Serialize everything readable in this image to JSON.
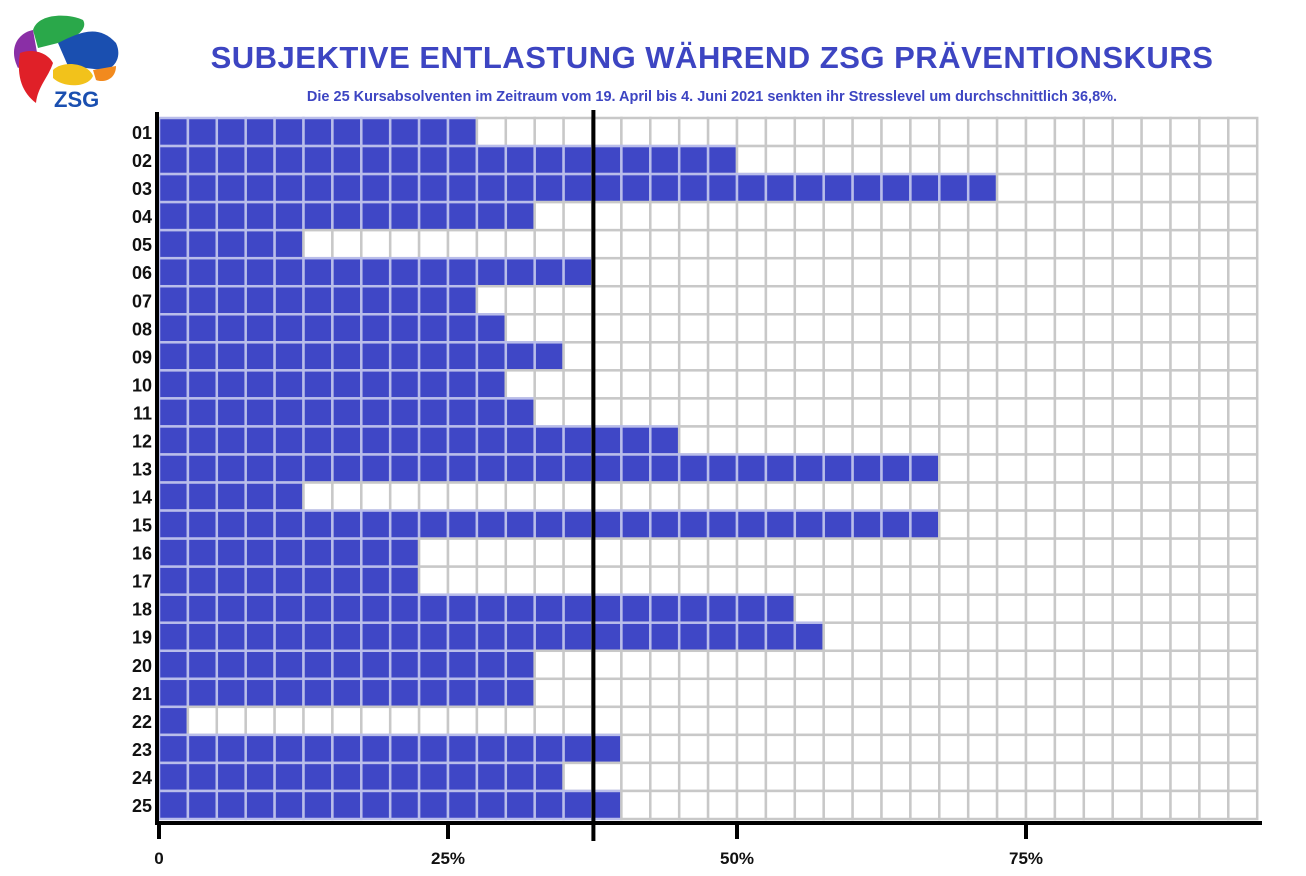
{
  "logo": {
    "text": "ZSG"
  },
  "chart_data": {
    "type": "bar",
    "orientation": "horizontal",
    "title": "SUBJEKTIVE ENTLASTUNG WÄHREND ZSG PRÄVENTIONSKURS",
    "subtitle": "Die 25 Kursabsolventen im Zeitraum vom 19. April bis 4. Juni 2021 senkten ihr Stresslevel um durchschnittlich 36,8%.",
    "categories": [
      "01",
      "02",
      "03",
      "04",
      "05",
      "06",
      "07",
      "08",
      "09",
      "10",
      "11",
      "12",
      "13",
      "14",
      "15",
      "16",
      "17",
      "18",
      "19",
      "20",
      "21",
      "22",
      "23",
      "24",
      "25"
    ],
    "values": [
      27.5,
      50,
      72.5,
      32.5,
      12.5,
      37.5,
      27.5,
      30,
      35,
      30,
      32.5,
      45,
      67.5,
      12.5,
      67.5,
      22.5,
      22.5,
      55,
      57.5,
      32.5,
      32.5,
      2.5,
      40,
      35,
      40
    ],
    "mean": 36.8,
    "xlim": [
      0,
      95
    ],
    "grid_step": 2.5,
    "xticks": [
      0,
      25,
      50,
      75
    ],
    "xtick_labels": [
      "0",
      "25%",
      "50%",
      "75%"
    ],
    "xlabel": "",
    "ylabel": "",
    "grid": true,
    "colors": {
      "bar": "#3f47c6",
      "bar_grid": "#b9bdea",
      "grid": "#c8c8c8",
      "title": "#3d45c2"
    }
  }
}
